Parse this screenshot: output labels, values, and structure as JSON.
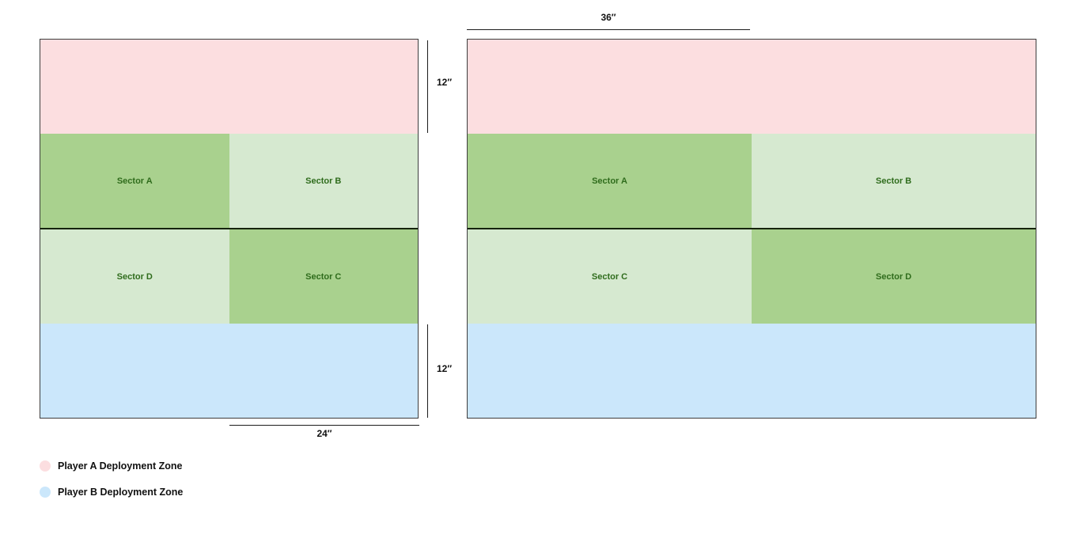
{
  "colors": {
    "player_a_zone": "#fcdee0",
    "player_b_zone": "#cbe7fb",
    "sector_dark_green": "#a9d18e",
    "sector_light_green": "#d6e9d0",
    "sector_label_text": "#2f6c1c",
    "divider_line": "#15240a",
    "board_border": "#3d3d3d"
  },
  "boards": [
    {
      "name": "left board",
      "sectors": [
        {
          "label": "Sector A",
          "color": "#a9d18e"
        },
        {
          "label": "Sector B",
          "color": "#d6e9d0"
        },
        {
          "label": "Sector D",
          "color": "#d6e9d0"
        },
        {
          "label": "Sector C",
          "color": "#a9d18e"
        }
      ],
      "dimensions": {
        "deployment_top_height": "12″",
        "deployment_bottom_height": "12″",
        "half_width": "24″"
      }
    },
    {
      "name": "right board",
      "sectors": [
        {
          "label": "Sector A",
          "color": "#a9d18e"
        },
        {
          "label": "Sector B",
          "color": "#d6e9d0"
        },
        {
          "label": "Sector C",
          "color": "#d6e9d0"
        },
        {
          "label": "Sector D",
          "color": "#a9d18e"
        }
      ],
      "dimensions": {
        "half_width": "36″"
      }
    }
  ],
  "legend": {
    "items": [
      {
        "label": "Player A Deployment Zone",
        "color": "#fcdee0"
      },
      {
        "label": "Player B Deployment Zone",
        "color": "#cbe7fb"
      }
    ]
  }
}
